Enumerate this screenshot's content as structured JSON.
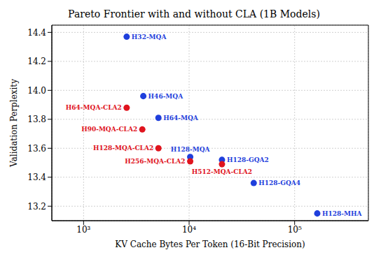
{
  "chart_data": {
    "type": "scatter",
    "title": "Pareto Frontier with and without CLA (1B Models)",
    "x_label": "KV Cache Bytes Per Token (16-Bit Precision)",
    "y_label": "Validation Perplexity",
    "log": "x",
    "grid": true,
    "xlim": [
      500,
      500000
    ],
    "xticks": [
      {
        "value": 1000,
        "label": "10³"
      },
      {
        "value": 10000,
        "label": "10⁴"
      },
      {
        "value": 100000,
        "label": "10⁵"
      }
    ],
    "ylim": [
      13.1,
      14.45
    ],
    "yticks": [
      13.2,
      13.4,
      13.6,
      13.8,
      {
        "value": 14,
        "label": "14.0"
      },
      14.2,
      14.4
    ],
    "series": [
      {
        "color": "#1f3fdc",
        "marker": "circle",
        "x": [
          2560,
          3680,
          5120,
          10240,
          20480,
          40960,
          163840
        ],
        "values": [
          14.37,
          13.96,
          13.81,
          13.54,
          13.52,
          13.36,
          13.15
        ],
        "labels": [
          "H32-MQA",
          "H46-MQA",
          "H64-MQA",
          "H128-MQA",
          "H128-GQA2",
          "H128-GQA4",
          "H128-MHA"
        ]
      },
      {
        "color": "#e0141e",
        "marker": "circle",
        "x": [
          2560,
          3600,
          5120,
          10240,
          20480
        ],
        "values": [
          13.88,
          13.73,
          13.6,
          13.51,
          13.49
        ],
        "labels": [
          "H64-MQA-CLA2",
          "H90-MQA-CLA2",
          "H128-MQA-CLA2",
          "H256-MQA-CLA2",
          "H512-MQA-CLA2"
        ]
      }
    ]
  }
}
